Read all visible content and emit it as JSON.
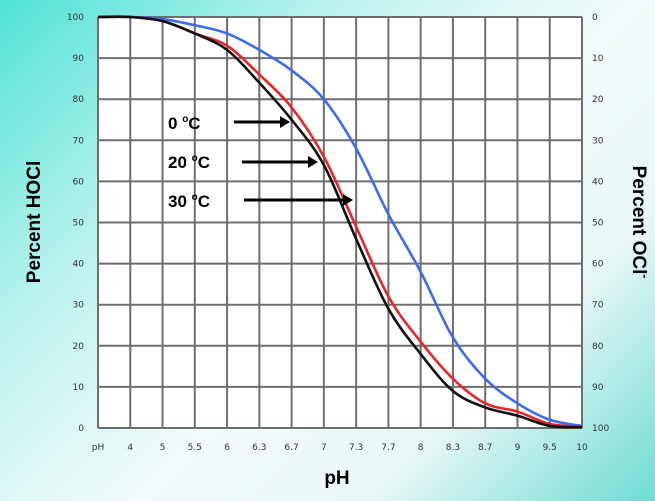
{
  "chart_data": {
    "type": "line",
    "ylabel_left": "Percent HOCl",
    "ylabel_right": "Percent OCl",
    "ylabel_right_sup": "-",
    "xlabel": "pH",
    "x_tick_labels": [
      "pH",
      "4",
      "5",
      "5.5",
      "6",
      "6.3",
      "6.7",
      "7",
      "7.3",
      "7.7",
      "8",
      "8.3",
      "8.7",
      "9",
      "9.5",
      "10"
    ],
    "y_left_ticks": [
      "0",
      "10",
      "20",
      "30",
      "40",
      "50",
      "60",
      "70",
      "80",
      "90",
      "100"
    ],
    "y_right_ticks": [
      "100",
      "90",
      "80",
      "70",
      "60",
      "50",
      "40",
      "30",
      "20",
      "10",
      "0"
    ],
    "ylim": [
      0,
      100
    ],
    "grid": true,
    "series": [
      {
        "name": "0 °C",
        "color": "#3b6cf0",
        "values": [
          100,
          100,
          99.5,
          98,
          96,
          92,
          87,
          80,
          68,
          52,
          38,
          22,
          12,
          6,
          2,
          0.5
        ]
      },
      {
        "name": "20 °C",
        "color": "#e8262a",
        "values": [
          100,
          100,
          99,
          96,
          93,
          86,
          78,
          66,
          49,
          32,
          21,
          12,
          6,
          4,
          1,
          0.3
        ]
      },
      {
        "name": "30 °C",
        "color": "#111111",
        "values": [
          100,
          100,
          99,
          96,
          92,
          84,
          75,
          64,
          46,
          29,
          18,
          9,
          5,
          3,
          0.5,
          0.2
        ]
      }
    ],
    "annotations": [
      {
        "text": "0 ",
        "sup": "o",
        "unit": "C"
      },
      {
        "text": "20 ",
        "sup": "o",
        "unit": "C"
      },
      {
        "text": "30 ",
        "sup": "o",
        "unit": "C"
      }
    ]
  }
}
